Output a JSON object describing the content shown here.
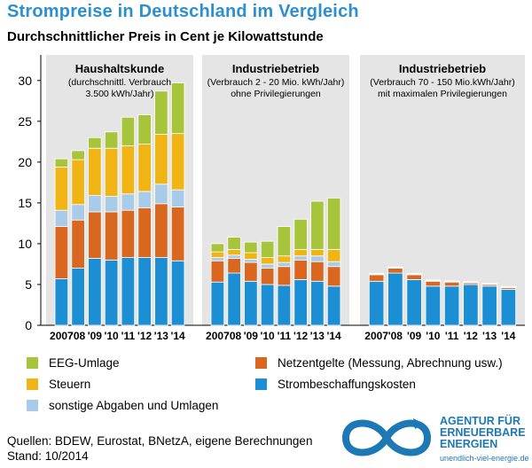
{
  "header": {
    "title": "Strompreise in Deutschland im Vergleich",
    "subtitle": "Durchschnittlicher Preis in Cent je Kilowattstunde"
  },
  "colors": {
    "strombeschaffung": "#1c8ed3",
    "netzentgelte": "#d9671f",
    "sonstige": "#a9cbea",
    "steuern": "#f0b514",
    "eeg": "#a7c43a",
    "title": "#2b8fd0",
    "panel": "#e5e5e5",
    "logo": "#1d78b6"
  },
  "chart_data": {
    "type": "bar",
    "stacked": true,
    "ylim": [
      0,
      32
    ],
    "yticks": [
      0,
      5,
      10,
      15,
      20,
      25,
      30
    ],
    "grid": false,
    "categories": [
      "2007",
      "'08",
      "'09",
      "'10",
      "'11",
      "'12",
      "'13",
      "'14"
    ],
    "stack_order": [
      "strombeschaffung",
      "netzentgelte",
      "sonstige",
      "steuern",
      "eeg"
    ],
    "panels": [
      {
        "title": "Haushaltskunde",
        "subtitle_lines": [
          "(durchschnittl. Verbrauch",
          "3.500 kWh/Jahr)"
        ],
        "values": {
          "strombeschaffung": [
            5.7,
            7.0,
            8.2,
            8.0,
            8.3,
            8.3,
            8.3,
            7.9
          ],
          "netzentgelte": [
            6.4,
            5.9,
            5.7,
            5.9,
            5.8,
            6.1,
            6.6,
            6.6
          ],
          "sonstige": [
            2.0,
            1.9,
            2.0,
            1.9,
            2.0,
            2.0,
            2.4,
            2.1
          ],
          "steuern": [
            5.3,
            5.5,
            5.8,
            5.9,
            5.9,
            5.8,
            6.1,
            6.9
          ],
          "eeg": [
            1.0,
            1.1,
            1.3,
            2.0,
            3.5,
            3.6,
            5.3,
            6.2
          ]
        }
      },
      {
        "title": "Industriebetrieb",
        "subtitle_lines": [
          "(Verbrauch 2 - 20 Mio. kWh/Jahr)",
          "ohne Privilegierungen"
        ],
        "values": {
          "strombeschaffung": [
            5.3,
            6.4,
            5.4,
            5.0,
            4.9,
            5.6,
            5.4,
            4.8
          ],
          "netzentgelte": [
            2.6,
            1.8,
            2.3,
            2.0,
            2.3,
            2.4,
            2.4,
            2.4
          ],
          "sonstige": [
            0.4,
            0.4,
            0.4,
            0.5,
            0.5,
            0.5,
            0.7,
            0.6
          ],
          "steuern": [
            0.7,
            0.7,
            0.8,
            0.8,
            0.8,
            0.8,
            0.8,
            1.5
          ],
          "eeg": [
            1.0,
            1.5,
            1.3,
            2.0,
            3.6,
            3.7,
            5.9,
            6.3
          ]
        }
      },
      {
        "title": "Industriebetrieb",
        "subtitle_lines": [
          "(Verbrauch 70 - 150 Mio.kWh/Jahr)",
          "mit maximalen Privilegierungen"
        ],
        "values": {
          "strombeschaffung": [
            5.4,
            6.4,
            5.6,
            4.8,
            4.8,
            5.0,
            4.8,
            4.4
          ],
          "netzentgelte": [
            0.8,
            0.6,
            0.6,
            0.6,
            0.5,
            0.2,
            0.2,
            0.2
          ],
          "sonstige": [
            0.05,
            0.05,
            0.05,
            0.05,
            0.05,
            0.05,
            0.05,
            0.05
          ],
          "steuern": [
            0.05,
            0.05,
            0.05,
            0.05,
            0.05,
            0.05,
            0.05,
            0.05
          ],
          "eeg": [
            0.05,
            0.05,
            0.05,
            0.05,
            0.05,
            0.05,
            0.05,
            0.05
          ]
        }
      }
    ]
  },
  "legend": {
    "eeg": "EEG-Umlage",
    "steuern": "Steuern",
    "sonstige": "sonstige Abgaben und Umlagen",
    "netzentgelte": "Netzentgelte (Messung, Abrechnung usw.)",
    "strombeschaffung": "Strombeschaffungskosten"
  },
  "footer": {
    "sources": "Quellen: BDEW, Eurostat, BNetzA, eigene Berechnungen",
    "date": "Stand: 10/2014"
  },
  "logo": {
    "line1": "AGENTUR FÜR",
    "line2": "ERNEUERBARE",
    "line3": "ENERGIEN",
    "url": "unendlich-viel-energie.de"
  }
}
